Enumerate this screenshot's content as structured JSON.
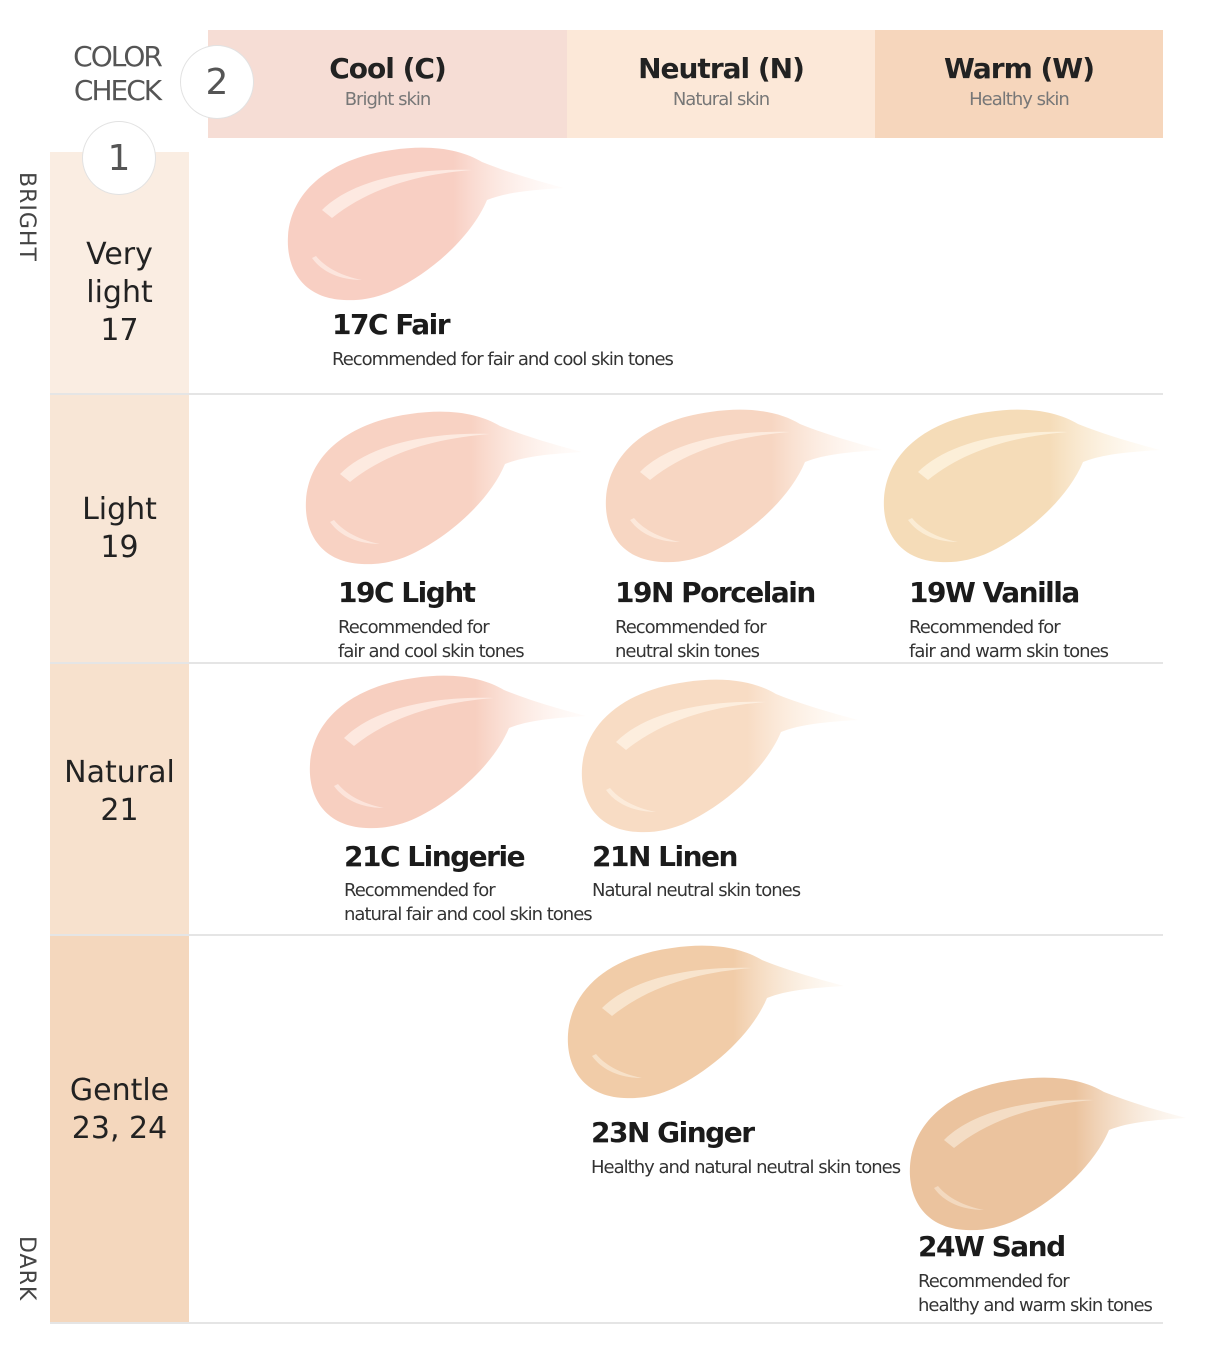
{
  "header": {
    "color_check": "COLOR\nCHECK",
    "step_1": "1",
    "step_2": "2",
    "columns": [
      {
        "title": "Cool (C)",
        "subtitle": "Bright skin",
        "color": "#f6ddd5"
      },
      {
        "title": "Neutral (N)",
        "subtitle": "Natural skin",
        "color": "#fce8d8"
      },
      {
        "title": "Warm (W)",
        "subtitle": "Healthy skin",
        "color": "#f6d6bc"
      }
    ]
  },
  "side": {
    "top_label": "BRIGHT",
    "bottom_label": "DARK"
  },
  "rows": [
    {
      "label": "Very\nlight\n17",
      "color": "#faede2"
    },
    {
      "label": "Light\n19",
      "color": "#f8e6d6"
    },
    {
      "label": "Natural\n21",
      "color": "#f7e1cd"
    },
    {
      "label": "Gentle\n23, 24",
      "color": "#f4d7bd"
    }
  ],
  "shades": [
    {
      "name": "17C Fair",
      "desc": "Recommended for fair and cool skin tones",
      "color": "#f8cfc3",
      "highlight": "#fff3ee"
    },
    {
      "name": "19C Light",
      "desc": "Recommended for\nfair and cool skin tones",
      "color": "#f8d2c3",
      "highlight": "#fff3ec"
    },
    {
      "name": "19N Porcelain",
      "desc": "Recommended for\nneutral skin tones",
      "color": "#f7d6c2",
      "highlight": "#fff4ea"
    },
    {
      "name": "19W Vanilla",
      "desc": "Recommended for\nfair and warm skin tones",
      "color": "#f5dcb8",
      "highlight": "#fff6e6"
    },
    {
      "name": "21C Lingerie",
      "desc": "Recommended for\nnatural fair and cool skin tones",
      "color": "#f7cfc0",
      "highlight": "#fff2ec"
    },
    {
      "name": "21N Linen",
      "desc": "Natural neutral skin tones",
      "color": "#f8dcc4",
      "highlight": "#fff5ea"
    },
    {
      "name": "23N Ginger",
      "desc": "Healthy and natural neutral skin tones",
      "color": "#f1cca8",
      "highlight": "#fbeedd"
    },
    {
      "name": "24W Sand",
      "desc": "Recommended for\nhealthy and warm skin tones",
      "color": "#ebc39e",
      "highlight": "#f8e8d6"
    }
  ]
}
